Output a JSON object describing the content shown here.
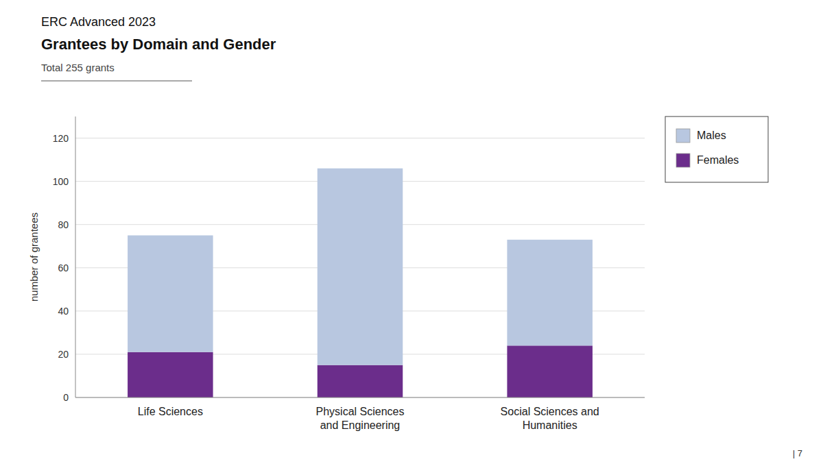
{
  "chart_data": {
    "type": "bar",
    "title": [
      "ERC Advanced 2023",
      "Grantees by Domain and Gender"
    ],
    "subtitle": "Total 255 grants",
    "annotations": [
      "| 7"
    ],
    "categories": [
      "Life Sciences",
      "Physical Sciences\nand Engineering",
      "Social Sciences and\nHumanities"
    ],
    "series": [
      {
        "name": "Females",
        "color": "#6b2d8b",
        "values": [
          21,
          15,
          24
        ]
      },
      {
        "name": "Males",
        "color": "#b8c7e0",
        "values": [
          54,
          91,
          49
        ]
      }
    ],
    "stacked": true,
    "y_label": "number of grantees",
    "ylim": [
      0,
      130
    ],
    "yticks": [
      0,
      20,
      40,
      60,
      80,
      100,
      120
    ],
    "grid": true,
    "legend": "right"
  }
}
